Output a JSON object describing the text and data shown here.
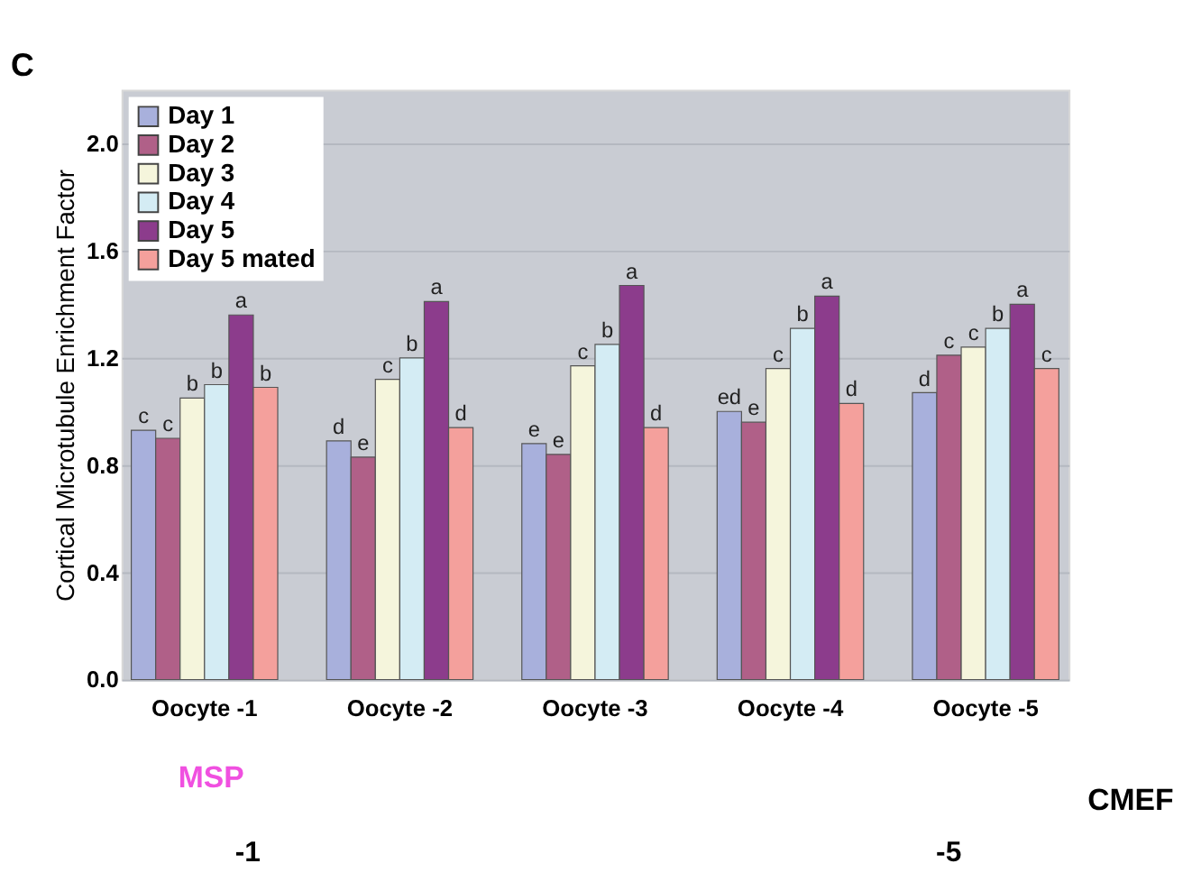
{
  "chart_data": {
    "type": "bar",
    "ylabel": "Cortical Microtubule Enrichment Factor",
    "categories": [
      "Oocyte -1",
      "Oocyte -2",
      "Oocyte -3",
      "Oocyte -4",
      "Oocyte -5"
    ],
    "series": [
      {
        "name": "Day 1",
        "color": "#a8b0dc",
        "values": [
          0.93,
          0.89,
          0.88,
          1.0,
          1.07
        ],
        "value_labels": [
          "c",
          "d",
          "e",
          "ed",
          "d"
        ]
      },
      {
        "name": "Day 2",
        "color": "#b06088",
        "values": [
          0.9,
          0.83,
          0.84,
          0.96,
          1.21
        ],
        "value_labels": [
          "c",
          "e",
          "e",
          "e",
          "c"
        ]
      },
      {
        "name": "Day 3",
        "color": "#f5f5dc",
        "values": [
          1.05,
          1.12,
          1.17,
          1.16,
          1.24
        ],
        "value_labels": [
          "b",
          "c",
          "c",
          "c",
          "c"
        ]
      },
      {
        "name": "Day 4",
        "color": "#d4ecf4",
        "values": [
          1.1,
          1.2,
          1.25,
          1.31,
          1.31
        ],
        "value_labels": [
          "b",
          "b",
          "b",
          "b",
          "b"
        ]
      },
      {
        "name": "Day 5",
        "color": "#8c3c8c",
        "values": [
          1.36,
          1.41,
          1.47,
          1.43,
          1.4
        ],
        "value_labels": [
          "a",
          "a",
          "a",
          "a",
          "a"
        ]
      },
      {
        "name": "Day 5 mated",
        "color": "#f4a09c",
        "values": [
          1.09,
          0.94,
          0.94,
          1.03,
          1.16
        ],
        "value_labels": [
          "b",
          "d",
          "d",
          "d",
          "c"
        ]
      }
    ],
    "ylim": [
      0,
      2.2
    ],
    "yticks": [
      {
        "value": 0,
        "label": "0.0"
      },
      {
        "value": 0.4,
        "label": "0.4"
      },
      {
        "value": 0.8,
        "label": "0.8"
      },
      {
        "value": 1.2,
        "label": "1.2"
      },
      {
        "value": 1.6,
        "label": "1.6"
      },
      {
        "value": 2.0,
        "label": "2.0"
      }
    ],
    "grid": "y",
    "legend": "top left",
    "annotations": [
      "C",
      "MSP",
      "CMEF",
      "-1",
      "-5"
    ]
  }
}
